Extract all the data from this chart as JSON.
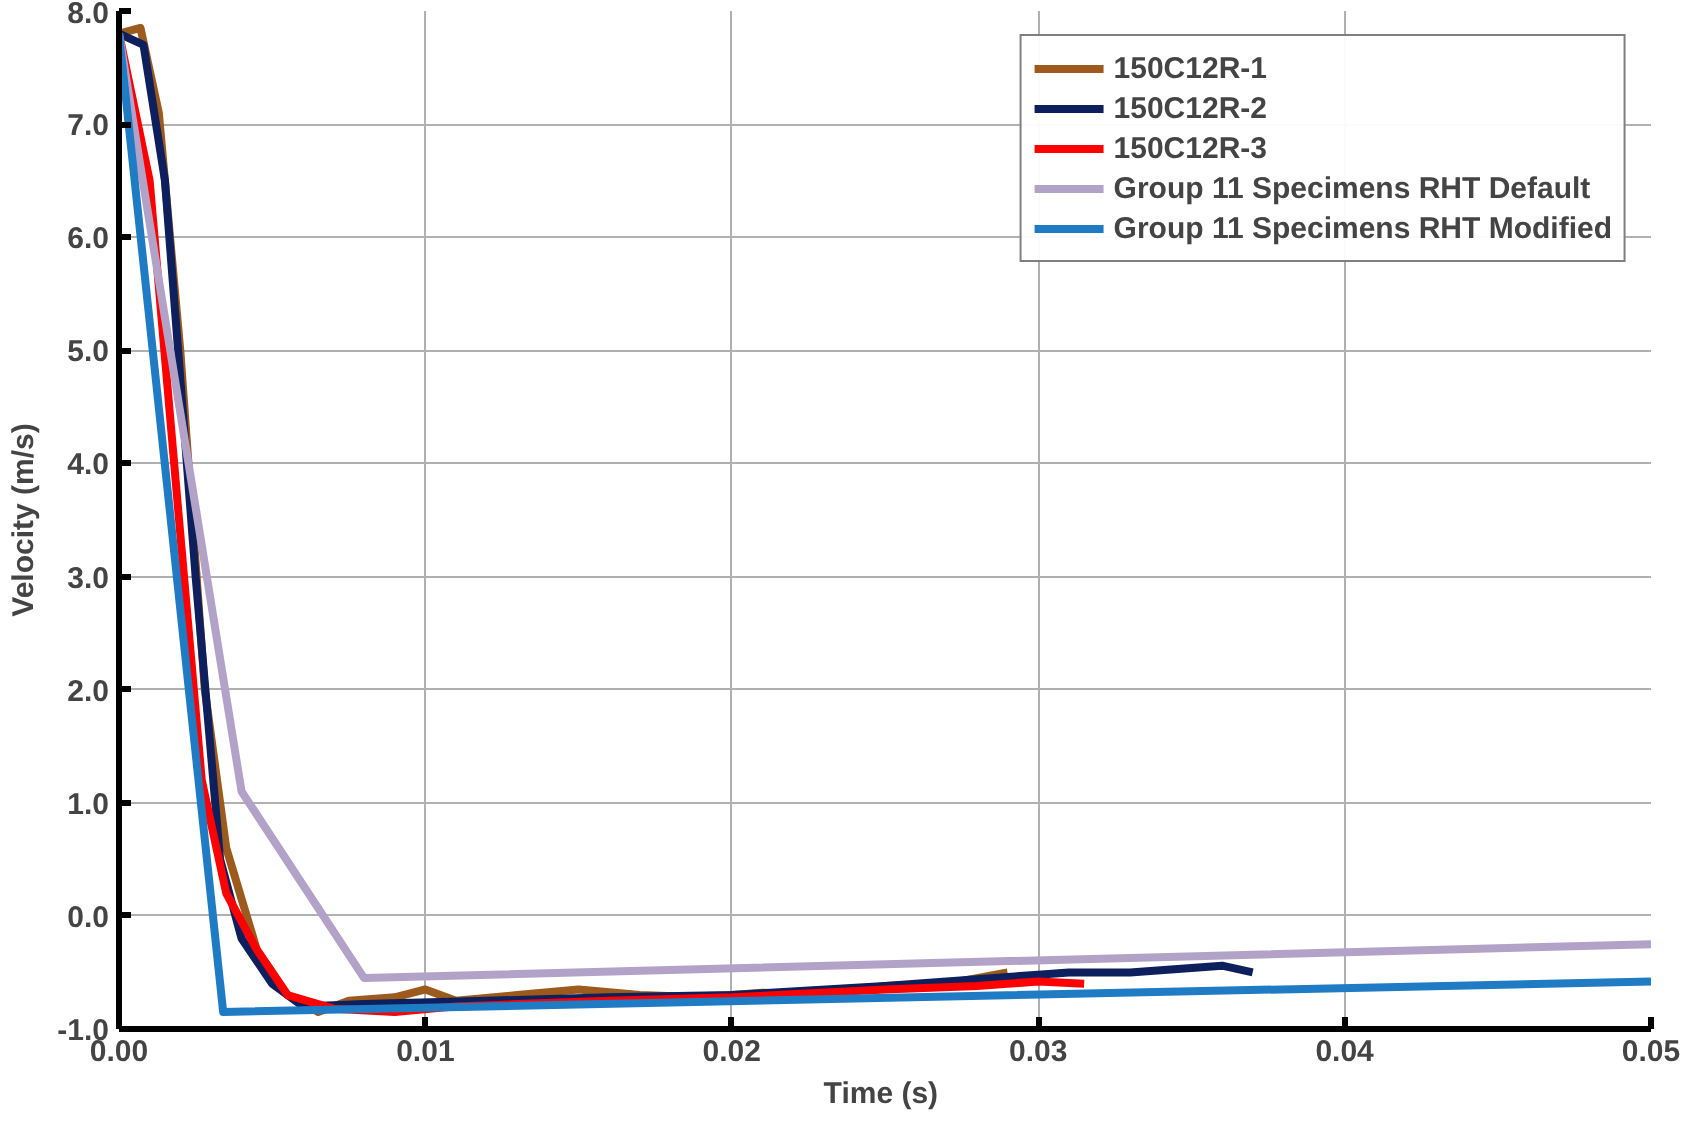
{
  "chart_data": {
    "type": "line",
    "xlabel": "Time  (s)",
    "ylabel": "Velocity (m/s)",
    "xlim": [
      0,
      0.05
    ],
    "xticks": [
      {
        "value": 0,
        "label": "0.00"
      },
      {
        "value": 0.01,
        "label": "0.01"
      },
      {
        "value": 0.02,
        "label": "0.02"
      },
      {
        "value": 0.03,
        "label": "0.03"
      },
      {
        "value": 0.04,
        "label": "0.04"
      },
      {
        "value": 0.05,
        "label": "0.05"
      }
    ],
    "ylim": [
      -1,
      8
    ],
    "yticks": [
      {
        "value": -1,
        "label": "-1.0"
      },
      {
        "value": 0,
        "label": "0.0"
      },
      {
        "value": 1,
        "label": "1.0"
      },
      {
        "value": 2,
        "label": "2.0"
      },
      {
        "value": 3,
        "label": "3.0"
      },
      {
        "value": 4,
        "label": "4.0"
      },
      {
        "value": 5,
        "label": "5.0"
      },
      {
        "value": 6,
        "label": "6.0"
      },
      {
        "value": 7,
        "label": "7.0"
      },
      {
        "value": 8,
        "label": "8.0"
      }
    ],
    "grid": true,
    "legend": "top right",
    "marker": "none",
    "line_style": "solid",
    "series": [
      {
        "name": "150C12R-1",
        "color": "#9c5a1c",
        "x": [
          0,
          0.0007,
          0.0013,
          0.002,
          0.0028,
          0.0035,
          0.0045,
          0.0055,
          0.0065,
          0.0075,
          0.009,
          0.01,
          0.011,
          0.013,
          0.015,
          0.017,
          0.019,
          0.021,
          0.023,
          0.025,
          0.027,
          0.028,
          0.029
        ],
        "values": [
          7.8,
          7.85,
          7.1,
          5.0,
          2.0,
          0.6,
          -0.3,
          -0.7,
          -0.85,
          -0.75,
          -0.72,
          -0.65,
          -0.75,
          -0.7,
          -0.65,
          -0.7,
          -0.72,
          -0.68,
          -0.7,
          -0.62,
          -0.6,
          -0.55,
          -0.5
        ]
      },
      {
        "name": "150C12R-2",
        "color": "#0d1f5c",
        "x": [
          0,
          0.0008,
          0.0015,
          0.0025,
          0.0033,
          0.004,
          0.005,
          0.006,
          0.008,
          0.012,
          0.016,
          0.02,
          0.025,
          0.03,
          0.031,
          0.033,
          0.036,
          0.037
        ],
        "values": [
          7.8,
          7.7,
          6.5,
          3.0,
          0.5,
          -0.2,
          -0.6,
          -0.8,
          -0.78,
          -0.75,
          -0.72,
          -0.7,
          -0.62,
          -0.52,
          -0.5,
          -0.5,
          -0.44,
          -0.5
        ]
      },
      {
        "name": "150C12R-3",
        "color": "#ff0000",
        "x": [
          0,
          0.001,
          0.0018,
          0.0027,
          0.0035,
          0.0045,
          0.0055,
          0.007,
          0.009,
          0.011,
          0.013,
          0.016,
          0.02,
          0.025,
          0.028,
          0.03,
          0.0315
        ],
        "values": [
          7.8,
          6.5,
          4.0,
          1.2,
          0.2,
          -0.3,
          -0.7,
          -0.82,
          -0.85,
          -0.8,
          -0.78,
          -0.75,
          -0.72,
          -0.65,
          -0.62,
          -0.58,
          -0.6
        ]
      },
      {
        "name": "Group 11 Specimens RHT Default",
        "color": "#b3a2c7",
        "x": [
          0,
          0.004,
          0.008,
          0.05
        ],
        "values": [
          7.8,
          1.1,
          -0.55,
          -0.25
        ]
      },
      {
        "name": "Group 11 Specimens RHT Modified",
        "color": "#1f7bc4",
        "x": [
          0,
          0.0034,
          0.05
        ],
        "values": [
          7.8,
          -0.85,
          -0.58
        ]
      }
    ]
  }
}
